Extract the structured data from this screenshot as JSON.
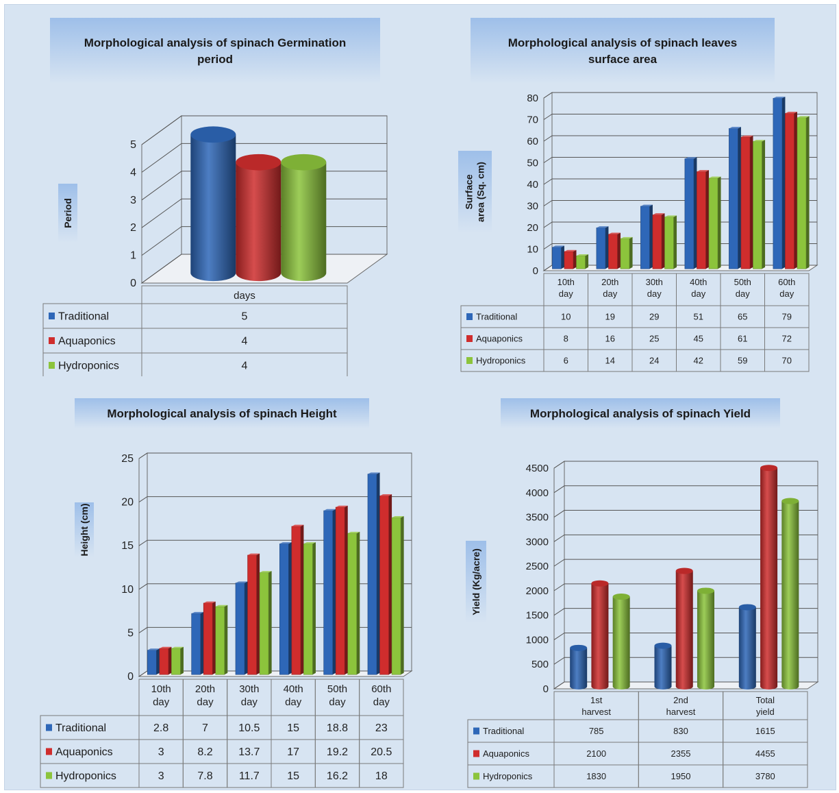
{
  "colors": {
    "Traditional": "#2e67b8",
    "Aquaponics": "#cf2d2d",
    "Hydroponics": "#8cc43c",
    "panel_bg": "#d7e4f2",
    "title_bg": "#a9c6ea"
  },
  "chart_data": [
    {
      "type": "bar",
      "shape": "cylinder-3d",
      "title": "Morphological analysis of spinach Germination period",
      "title_lines": [
        "Morphological analysis of spinach Germination",
        "period"
      ],
      "ylabel": "Period",
      "ylabel_lines": [
        "Period"
      ],
      "xlabel": "",
      "categories": [
        "days"
      ],
      "category_lines": [
        [
          "days"
        ]
      ],
      "ylim": [
        0,
        5
      ],
      "yticks": [
        0,
        1,
        2,
        3,
        4,
        5
      ],
      "grid": true,
      "legend": "data-table-below",
      "series": [
        {
          "name": "Traditional",
          "values": [
            5
          ]
        },
        {
          "name": "Aquaponics",
          "values": [
            4
          ]
        },
        {
          "name": "Hydroponics",
          "values": [
            4
          ]
        }
      ]
    },
    {
      "type": "bar",
      "shape": "box-3d",
      "title": "Morphological analysis of spinach leaves surface area",
      "title_lines": [
        "Morphological analysis of spinach leaves",
        "surface area"
      ],
      "ylabel": "Surface area (Sq. cm)",
      "ylabel_lines": [
        "Surface",
        "area (Sq. cm)"
      ],
      "xlabel": "",
      "categories": [
        "10th day",
        "20th day",
        "30th day",
        "40th day",
        "50th day",
        "60th day"
      ],
      "category_lines": [
        [
          "10th",
          "day"
        ],
        [
          "20th",
          "day"
        ],
        [
          "30th",
          "day"
        ],
        [
          "40th",
          "day"
        ],
        [
          "50th",
          "day"
        ],
        [
          "60th",
          "day"
        ]
      ],
      "ylim": [
        0,
        80
      ],
      "yticks": [
        0,
        10,
        20,
        30,
        40,
        50,
        60,
        70,
        80
      ],
      "grid": true,
      "legend": "data-table-below",
      "series": [
        {
          "name": "Traditional",
          "values": [
            10,
            19,
            29,
            51,
            65,
            79
          ]
        },
        {
          "name": "Aquaponics",
          "values": [
            8,
            16,
            25,
            45,
            61,
            72
          ]
        },
        {
          "name": "Hydroponics",
          "values": [
            6,
            14,
            24,
            42,
            59,
            70
          ]
        }
      ]
    },
    {
      "type": "bar",
      "shape": "box-3d",
      "title": "Morphological analysis of spinach Height",
      "title_lines": [
        "Morphological analysis of spinach Height"
      ],
      "ylabel": "Height (cm)",
      "ylabel_lines": [
        "Height (cm)"
      ],
      "xlabel": "",
      "categories": [
        "10th day",
        "20th day",
        "30th day",
        "40th day",
        "50th day",
        "60th day"
      ],
      "category_lines": [
        [
          "10th",
          "day"
        ],
        [
          "20th",
          "day"
        ],
        [
          "30th",
          "day"
        ],
        [
          "40th",
          "day"
        ],
        [
          "50th",
          "day"
        ],
        [
          "60th",
          "day"
        ]
      ],
      "ylim": [
        0,
        25
      ],
      "yticks": [
        0,
        5,
        10,
        15,
        20,
        25
      ],
      "grid": true,
      "legend": "data-table-below",
      "series": [
        {
          "name": "Traditional",
          "values": [
            2.8,
            7,
            10.5,
            15,
            18.8,
            23
          ]
        },
        {
          "name": "Aquaponics",
          "values": [
            3,
            8.2,
            13.7,
            17,
            19.2,
            20.5
          ]
        },
        {
          "name": "Hydroponics",
          "values": [
            3,
            7.8,
            11.7,
            15,
            16.2,
            18
          ]
        }
      ]
    },
    {
      "type": "bar",
      "shape": "cylinder-3d",
      "title": "Morphological analysis of spinach Yield",
      "title_lines": [
        "Morphological analysis of spinach Yield"
      ],
      "ylabel": "Yield (Kg/acre)",
      "ylabel_lines": [
        "Yield (Kg/acre)"
      ],
      "xlabel": "",
      "categories": [
        "1st harvest",
        "2nd harvest",
        "Total yield"
      ],
      "category_lines": [
        [
          "1st",
          "harvest"
        ],
        [
          "2nd",
          "harvest"
        ],
        [
          "Total",
          "yield"
        ]
      ],
      "ylim": [
        0,
        4500
      ],
      "yticks": [
        0,
        500,
        1000,
        1500,
        2000,
        2500,
        3000,
        3500,
        4000,
        4500
      ],
      "grid": true,
      "legend": "data-table-below",
      "series": [
        {
          "name": "Traditional",
          "values": [
            785,
            830,
            1615
          ]
        },
        {
          "name": "Aquaponics",
          "values": [
            2100,
            2355,
            4455
          ]
        },
        {
          "name": "Hydroponics",
          "values": [
            1830,
            1950,
            3780
          ]
        }
      ]
    }
  ]
}
